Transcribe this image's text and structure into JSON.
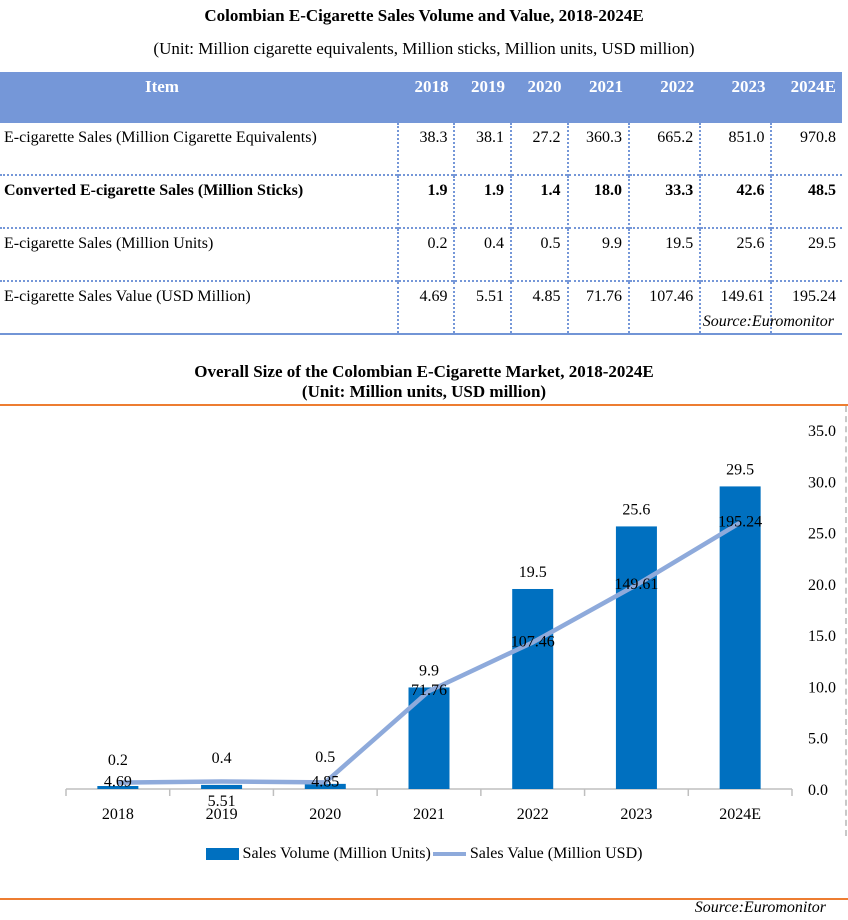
{
  "table": {
    "title": "Colombian E-Cigarette Sales Volume and Value, 2018-2024E",
    "subtitle": "(Unit: Million cigarette equivalents, Million sticks, Million units, USD million)",
    "header": [
      "Item",
      "2018",
      "2019",
      "2020",
      "2021",
      "2022",
      "2023",
      "2024E"
    ],
    "rows": [
      {
        "label": "E-cigarette Sales (Million Cigarette Equivalents)",
        "bold": false,
        "values": [
          "38.3",
          "38.1",
          "27.2",
          "360.3",
          "665.2",
          "851.0",
          "970.8"
        ]
      },
      {
        "label": "Converted E-cigarette Sales (Million Sticks)",
        "bold": true,
        "values": [
          "1.9",
          "1.9",
          "1.4",
          "18.0",
          "33.3",
          "42.6",
          "48.5"
        ]
      },
      {
        "label": "E-cigarette Sales (Million Units)",
        "bold": false,
        "values": [
          "0.2",
          "0.4",
          "0.5",
          "9.9",
          "19.5",
          "25.6",
          "29.5"
        ]
      },
      {
        "label": "E-cigarette Sales Value (USD Million)",
        "bold": false,
        "values": [
          "4.69",
          "5.51",
          "4.85",
          "71.76",
          "107.46",
          "149.61",
          "195.24"
        ]
      }
    ],
    "source": "Source:Euromonitor",
    "header_color": "#7597d8"
  },
  "chart_data": {
    "type": "bar",
    "title": "Overall Size of the Colombian E-Cigarette Market, 2018-2024E",
    "subtitle": "(Unit: Million units, USD million)",
    "categories": [
      "2018",
      "2019",
      "2020",
      "2021",
      "2022",
      "2023",
      "2024E"
    ],
    "series": [
      {
        "name": "Sales Volume (Million Units)",
        "type": "bar",
        "axis": "right",
        "color": "#0070c0",
        "values": [
          0.2,
          0.4,
          0.5,
          9.9,
          19.5,
          25.6,
          29.5
        ],
        "labels": [
          "0.2",
          "0.4",
          "0.5",
          "9.9",
          "19.5",
          "25.6",
          "29.5"
        ]
      },
      {
        "name": "Sales Value (Million USD)",
        "type": "line",
        "axis": "secondary-hidden",
        "color": "#8eaadb",
        "values": [
          4.69,
          5.51,
          4.85,
          71.76,
          107.46,
          149.61,
          195.24
        ],
        "labels": [
          "4.69",
          "5.51",
          "4.85",
          "71.76",
          "107.46",
          "149.61",
          "195.24"
        ]
      }
    ],
    "y_right": {
      "ticks": [
        "0.0",
        "5.0",
        "10.0",
        "15.0",
        "20.0",
        "25.0",
        "30.0",
        "35.0"
      ],
      "range": [
        0,
        35
      ]
    },
    "y_hidden_line_range": [
      0,
      250
    ],
    "legend_position": "bottom",
    "grid": false,
    "source": "Source:Euromonitor"
  }
}
